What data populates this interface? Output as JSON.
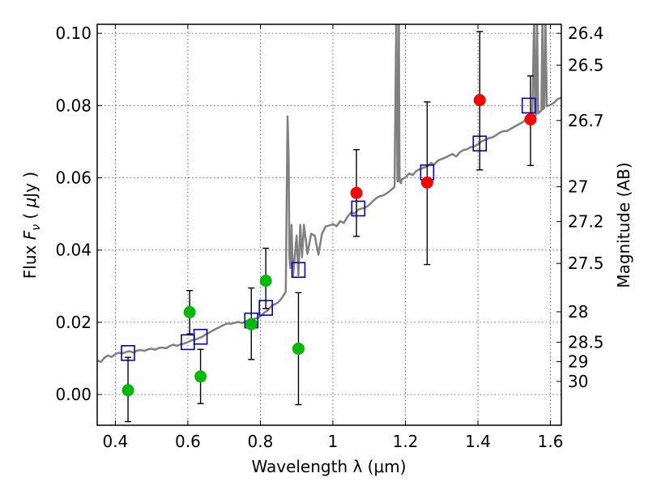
{
  "chart_data": {
    "type": "scatter",
    "xlabel": "Wavelength  λ (μm)",
    "ylabel": "Flux  F_ν  ( μJy )",
    "ylabel_parts": {
      "pre": "Flux ",
      "sym": "F",
      "sub": "ν",
      "mid": " (  ",
      "mu": "μ",
      "post": "Jy )"
    },
    "y2label": "Magnitude (AB)",
    "xlim": [
      0.35,
      1.63
    ],
    "ylim": [
      -0.0085,
      0.1025
    ],
    "grid": true,
    "xticks": [
      0.4,
      0.6,
      0.8,
      1.0,
      1.2,
      1.4,
      1.6
    ],
    "xtick_labels": [
      "0.4",
      "0.6",
      "0.8",
      "1",
      "1.2",
      "1.4",
      "1.6"
    ],
    "yticks": [
      0.0,
      0.02,
      0.04,
      0.06,
      0.08,
      0.1
    ],
    "ytick_labels": [
      "0.00",
      "0.02",
      "0.04",
      "0.06",
      "0.08",
      "0.10"
    ],
    "magnitude_ticks": [
      {
        "mag": 26.4,
        "label": "26.4"
      },
      {
        "mag": 26.5,
        "label": "26.5"
      },
      {
        "mag": 26.7,
        "label": "26.7"
      },
      {
        "mag": 27.0,
        "label": "27"
      },
      {
        "mag": 27.2,
        "label": "27.2"
      },
      {
        "mag": 27.5,
        "label": "27.5"
      },
      {
        "mag": 28.0,
        "label": "28"
      },
      {
        "mag": 28.5,
        "label": "28.5"
      },
      {
        "mag": 29.0,
        "label": "29"
      },
      {
        "mag": 30.0,
        "label": "30"
      }
    ],
    "colors": {
      "model": "#808080",
      "model_bands": "#0000cc",
      "detections": "#ff0000",
      "low_sn": "#00bb00",
      "errorbar": "#000000",
      "grid": "#444444"
    },
    "series": [
      {
        "marker": "line",
        "x": [
          0.35,
          0.36,
          0.37,
          0.38,
          0.39,
          0.4,
          0.41,
          0.42,
          0.43,
          0.44,
          0.45,
          0.46,
          0.47,
          0.48,
          0.49,
          0.5,
          0.51,
          0.52,
          0.53,
          0.54,
          0.55,
          0.56,
          0.57,
          0.58,
          0.59,
          0.6,
          0.61,
          0.62,
          0.63,
          0.64,
          0.65,
          0.66,
          0.67,
          0.68,
          0.69,
          0.7,
          0.71,
          0.72,
          0.73,
          0.74,
          0.75,
          0.76,
          0.77,
          0.78,
          0.79,
          0.8,
          0.81,
          0.82,
          0.83,
          0.84,
          0.85,
          0.86,
          0.87,
          0.875,
          0.878,
          0.88,
          0.883,
          0.886,
          0.89,
          0.9,
          0.905,
          0.91,
          0.915,
          0.92,
          0.93,
          0.94,
          0.95,
          0.96,
          0.97,
          0.98,
          0.99,
          1.0,
          1.01,
          1.02,
          1.03,
          1.04,
          1.05,
          1.06,
          1.07,
          1.08,
          1.09,
          1.1,
          1.11,
          1.12,
          1.13,
          1.14,
          1.15,
          1.16,
          1.17,
          1.175,
          1.178,
          1.18,
          1.182,
          1.184,
          1.188,
          1.19,
          1.2,
          1.21,
          1.22,
          1.23,
          1.24,
          1.25,
          1.26,
          1.27,
          1.28,
          1.29,
          1.3,
          1.31,
          1.32,
          1.33,
          1.34,
          1.35,
          1.36,
          1.37,
          1.38,
          1.39,
          1.4,
          1.41,
          1.42,
          1.43,
          1.44,
          1.45,
          1.46,
          1.47,
          1.48,
          1.49,
          1.5,
          1.51,
          1.52,
          1.53,
          1.54,
          1.55,
          1.555,
          1.558,
          1.56,
          1.563,
          1.566,
          1.57,
          1.575,
          1.578,
          1.58,
          1.583,
          1.586,
          1.59,
          1.6,
          1.61,
          1.62,
          1.63
        ],
        "y": [
          0.0095,
          0.009,
          0.0102,
          0.0108,
          0.0104,
          0.0112,
          0.0116,
          0.0114,
          0.0118,
          0.012,
          0.0116,
          0.0122,
          0.0123,
          0.0121,
          0.0125,
          0.0127,
          0.0124,
          0.0129,
          0.013,
          0.0128,
          0.0134,
          0.0138,
          0.0135,
          0.0139,
          0.0141,
          0.0145,
          0.015,
          0.0152,
          0.0156,
          0.016,
          0.0167,
          0.0172,
          0.0178,
          0.0183,
          0.0188,
          0.0193,
          0.0197,
          0.0196,
          0.0199,
          0.0201,
          0.0198,
          0.0203,
          0.0206,
          0.0209,
          0.0212,
          0.0216,
          0.0226,
          0.0233,
          0.0245,
          0.025,
          0.0256,
          0.0268,
          0.0285,
          0.077,
          0.065,
          0.038,
          0.035,
          0.047,
          0.0325,
          0.044,
          0.033,
          0.047,
          0.038,
          0.047,
          0.039,
          0.0445,
          0.044,
          0.0387,
          0.0445,
          0.0465,
          0.0468,
          0.0472,
          0.0466,
          0.048,
          0.0475,
          0.0492,
          0.0504,
          0.0501,
          0.0512,
          0.0515,
          0.0518,
          0.0525,
          0.0535,
          0.0544,
          0.0549,
          0.0552,
          0.0558,
          0.0566,
          0.0575,
          0.105,
          0.059,
          0.059,
          0.105,
          0.0592,
          0.0585,
          0.0596,
          0.0601,
          0.0612,
          0.0608,
          0.0619,
          0.0624,
          0.0628,
          0.0631,
          0.0641,
          0.0637,
          0.0648,
          0.0652,
          0.0656,
          0.0661,
          0.0666,
          0.0659,
          0.0671,
          0.0677,
          0.0679,
          0.0685,
          0.0687,
          0.0693,
          0.0701,
          0.0705,
          0.071,
          0.0712,
          0.0718,
          0.0725,
          0.0729,
          0.073,
          0.0735,
          0.0741,
          0.0747,
          0.0752,
          0.0759,
          0.0764,
          0.0771,
          0.105,
          0.077,
          0.0775,
          0.105,
          0.0778,
          0.0782,
          0.0786,
          0.105,
          0.079,
          0.0794,
          0.105,
          0.0798,
          0.0802,
          0.0808,
          0.0818,
          0.0822
        ]
      },
      {
        "marker": "open-square",
        "x": [
          0.435,
          0.6,
          0.635,
          0.775,
          0.815,
          0.905,
          1.07,
          1.26,
          1.405,
          1.54
        ],
        "y": [
          0.0115,
          0.0145,
          0.016,
          0.0205,
          0.024,
          0.0345,
          0.0515,
          0.0615,
          0.0695,
          0.08
        ]
      },
      {
        "marker": "circle",
        "x": [
          1.065,
          1.26,
          1.405,
          1.545
        ],
        "y": [
          0.0558,
          0.0587,
          0.0815,
          0.0762
        ],
        "yerr_low": [
          0.0438,
          0.036,
          0.0622,
          0.0634
        ],
        "yerr_high": [
          0.0678,
          0.081,
          0.1005,
          0.0882
        ]
      },
      {
        "marker": "circle",
        "x": [
          0.435,
          0.605,
          0.635,
          0.775,
          0.815,
          0.905
        ],
        "y": [
          0.0012,
          0.0228,
          0.005,
          0.0195,
          0.0315,
          0.0127
        ],
        "yerr_low": [
          -0.0075,
          0.0168,
          -0.0025,
          0.0097,
          0.0238,
          -0.0028
        ],
        "yerr_high": [
          0.0103,
          0.0288,
          0.0125,
          0.0295,
          0.0405,
          0.0282
        ]
      }
    ]
  }
}
